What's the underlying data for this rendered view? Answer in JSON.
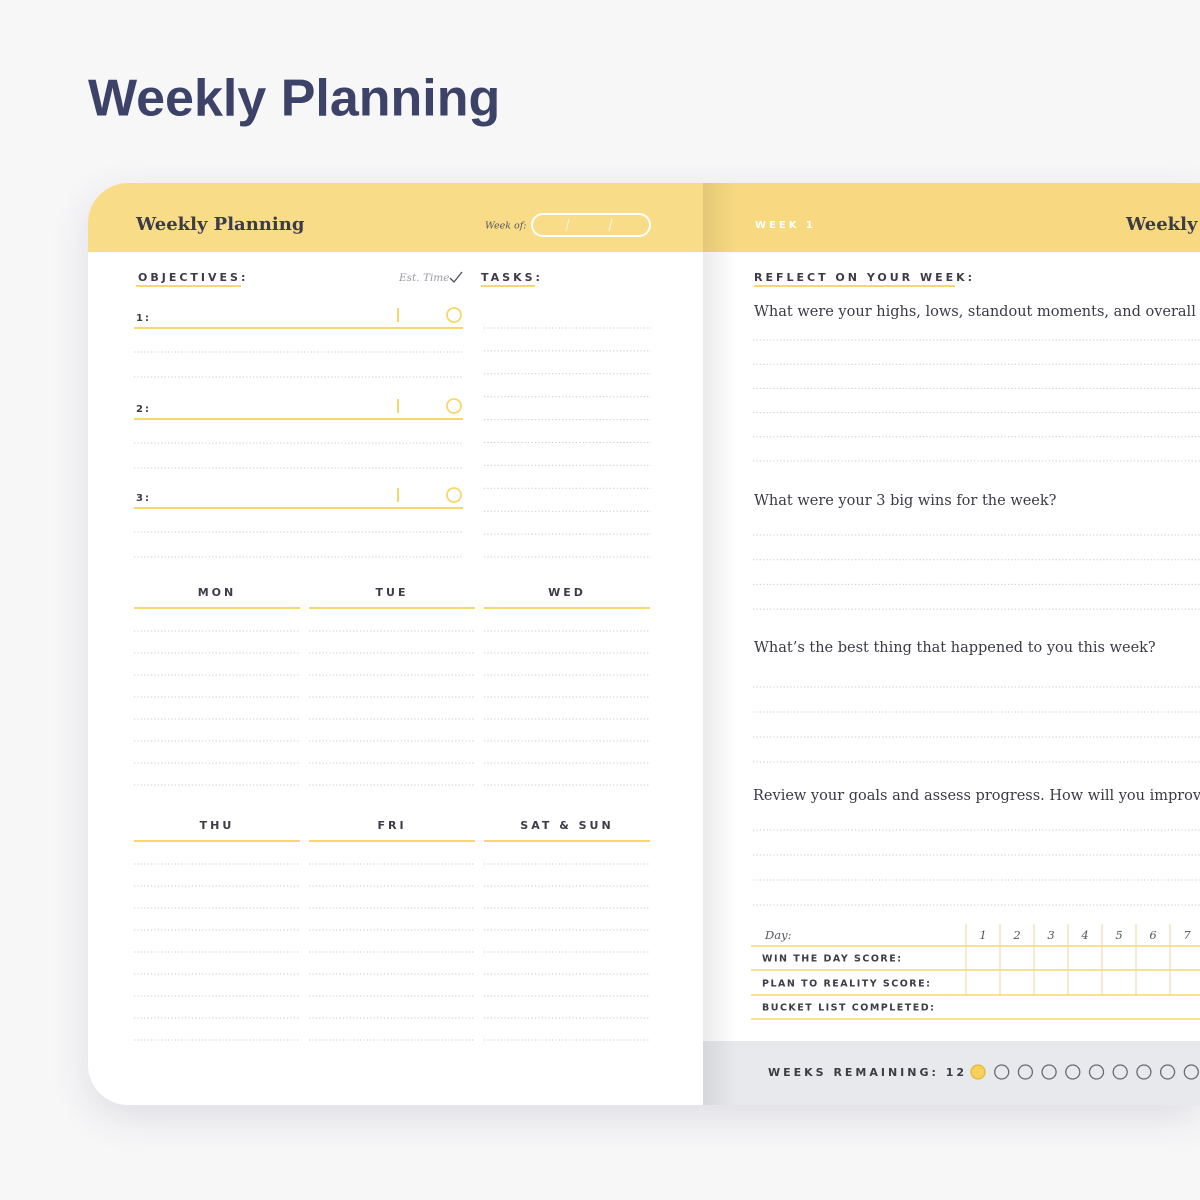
{
  "title": "Weekly Planning",
  "left_page": {
    "header_title": "Weekly Planning",
    "week_of": "Week of:",
    "objectives_label": "OBJECTIVES:",
    "est_time": "Est. Time",
    "tasks_label": "TASKS:",
    "objectives": [
      "1:",
      "2:",
      "3:"
    ],
    "days": [
      "MON",
      "TUE",
      "WED",
      "THU",
      "FRI",
      "SAT & SUN"
    ]
  },
  "right_page": {
    "week": "WEEK 1",
    "header_title": "Weekly R",
    "reflect_label": "REFLECT ON YOUR WEEK:",
    "questions": [
      "What were your highs, lows, standout moments, and overall feelin",
      "What were your 3 big wins for the week?",
      "What’s the best thing that happened to you this week?",
      "Review your goals and assess progress. How will you improve next"
    ],
    "score_table": {
      "day_label": "Day:",
      "days": [
        1,
        2,
        3,
        4,
        5,
        6,
        7
      ],
      "rows": [
        "WIN THE DAY SCORE:",
        "PLAN TO REALITY SCORE:",
        "BUCKET LIST COMPLETED:"
      ]
    },
    "weeks_remaining": "WEEKS REMAINING: 12"
  }
}
